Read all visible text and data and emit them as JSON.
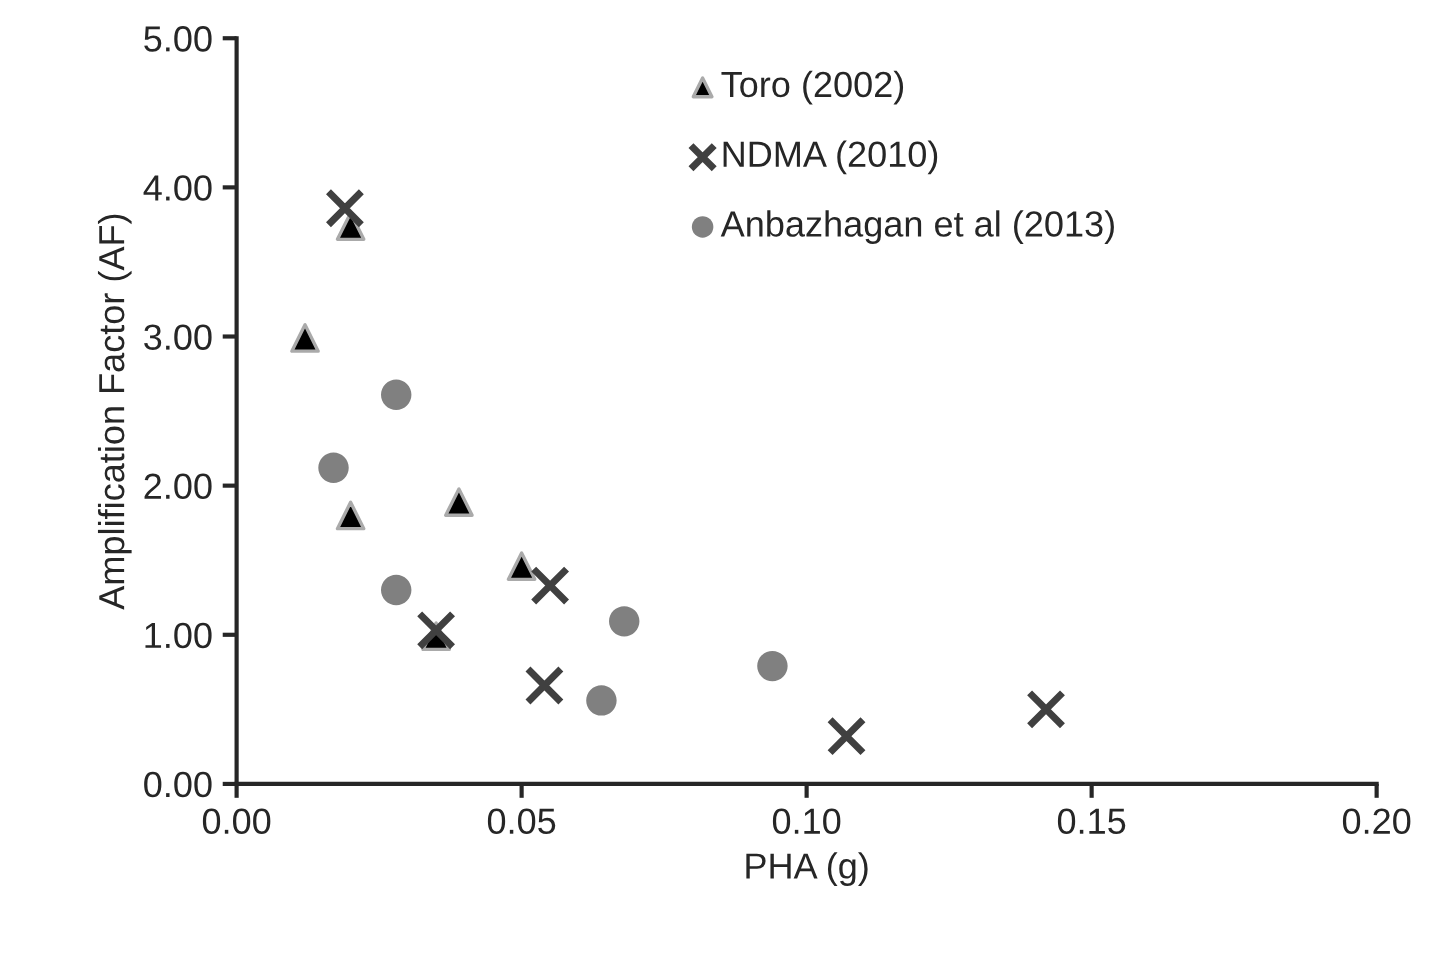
{
  "chart_data": {
    "type": "scatter",
    "xlabel": "PHA (g)",
    "ylabel": "Amplification Factor (AF)",
    "xlim": [
      0,
      0.2
    ],
    "xticks": [
      {
        "value": 0,
        "label": "0.00"
      },
      {
        "value": 0.05,
        "label": "0.05"
      },
      {
        "value": 0.1,
        "label": "0.10"
      },
      {
        "value": 0.15,
        "label": "0.15"
      },
      {
        "value": 0.2,
        "label": "0.20"
      }
    ],
    "ylim": [
      0,
      5
    ],
    "yticks": [
      {
        "value": 0,
        "label": "0.00"
      },
      {
        "value": 1,
        "label": "1.00"
      },
      {
        "value": 2,
        "label": "2.00"
      },
      {
        "value": 3,
        "label": "3.00"
      },
      {
        "value": 4,
        "label": "4.00"
      },
      {
        "value": 5,
        "label": "5.00"
      }
    ],
    "grid": false,
    "legend": "top right",
    "series": [
      {
        "name": "Toro (2002)",
        "color": "#000000",
        "marker": "triangle",
        "x": [
          0.012,
          0.02,
          0.02,
          0.039,
          0.05,
          0.035
        ],
        "values": [
          2.99,
          3.74,
          1.8,
          1.89,
          1.46,
          0.99
        ]
      },
      {
        "name": "NDMA (2010)",
        "color": "#404040",
        "marker": "cross",
        "x": [
          0.019,
          0.035,
          0.055,
          0.054,
          0.107,
          0.142
        ],
        "values": [
          3.86,
          1.03,
          1.33,
          0.66,
          0.32,
          0.5
        ]
      },
      {
        "name": "Anbazhagan et al (2013)",
        "color": "#808080",
        "marker": "circle",
        "x": [
          0.028,
          0.017,
          0.028,
          0.064,
          0.068,
          0.094
        ],
        "values": [
          2.61,
          2.12,
          1.3,
          0.56,
          1.09,
          0.79
        ]
      }
    ]
  }
}
